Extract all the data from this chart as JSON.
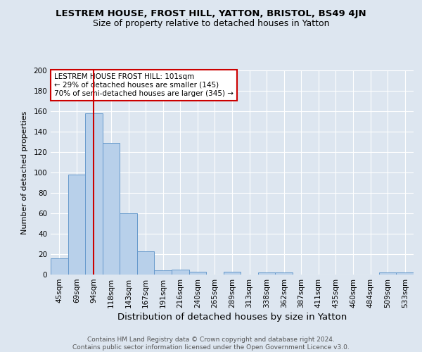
{
  "title": "LESTREM HOUSE, FROST HILL, YATTON, BRISTOL, BS49 4JN",
  "subtitle": "Size of property relative to detached houses in Yatton",
  "xlabel": "Distribution of detached houses by size in Yatton",
  "ylabel": "Number of detached properties",
  "categories": [
    "45sqm",
    "69sqm",
    "94sqm",
    "118sqm",
    "143sqm",
    "167sqm",
    "191sqm",
    "216sqm",
    "240sqm",
    "265sqm",
    "289sqm",
    "313sqm",
    "338sqm",
    "362sqm",
    "387sqm",
    "411sqm",
    "435sqm",
    "460sqm",
    "484sqm",
    "509sqm",
    "533sqm"
  ],
  "values": [
    16,
    98,
    158,
    129,
    60,
    23,
    4,
    5,
    3,
    0,
    3,
    0,
    2,
    2,
    0,
    0,
    0,
    0,
    0,
    2,
    2
  ],
  "bar_color": "#b8d0ea",
  "bar_edge_color": "#6699cc",
  "vline_x": 2,
  "vline_color": "#cc0000",
  "annotation_text": "LESTREM HOUSE FROST HILL: 101sqm\n← 29% of detached houses are smaller (145)\n70% of semi-detached houses are larger (345) →",
  "annotation_box_color": "#ffffff",
  "annotation_box_edge_color": "#cc0000",
  "ylim": [
    0,
    200
  ],
  "yticks": [
    0,
    20,
    40,
    60,
    80,
    100,
    120,
    140,
    160,
    180,
    200
  ],
  "bg_color": "#dde6f0",
  "footer_line1": "Contains HM Land Registry data © Crown copyright and database right 2024.",
  "footer_line2": "Contains public sector information licensed under the Open Government Licence v3.0.",
  "title_fontsize": 9.5,
  "subtitle_fontsize": 9,
  "xlabel_fontsize": 9.5,
  "ylabel_fontsize": 8,
  "tick_fontsize": 7.5,
  "annotation_fontsize": 7.5,
  "footer_fontsize": 6.5
}
